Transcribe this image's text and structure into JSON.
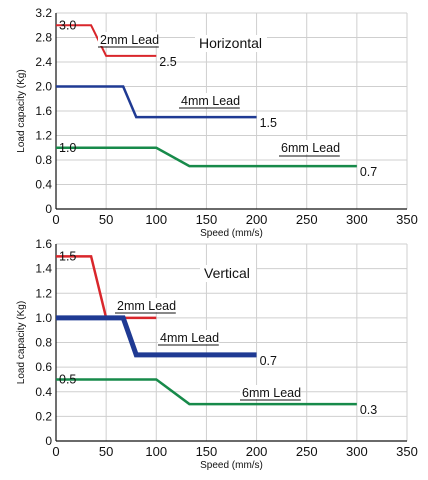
{
  "chart_data": [
    {
      "type": "line",
      "title": "Horizontal",
      "xlabel": "Speed (mm/s)",
      "ylabel": "Load capacity (Kg)",
      "xlim": [
        0,
        350
      ],
      "ylim": [
        0,
        3.2
      ],
      "x_ticks": [
        "0",
        "50",
        "100",
        "150",
        "200",
        "250",
        "300",
        "350"
      ],
      "y_ticks": [
        "0",
        "0.4",
        "0.8",
        "1.2",
        "1.6",
        "2.0",
        "2.4",
        "2.8",
        "3.2"
      ],
      "grid": true,
      "series": [
        {
          "name": "2mm Lead",
          "color": "#d9262b",
          "x": [
            0,
            35,
            50,
            100
          ],
          "y": [
            3.0,
            3.0,
            2.5,
            2.5
          ],
          "start_label": "3.0",
          "end_label": "2.5"
        },
        {
          "name": "4mm Lead",
          "color": "#1f3a93",
          "x": [
            0,
            67,
            80,
            200
          ],
          "y": [
            2.0,
            2.0,
            1.5,
            1.5
          ],
          "start_label": "",
          "end_label": "1.5"
        },
        {
          "name": "6mm Lead",
          "color": "#178a4a",
          "x": [
            0,
            100,
            133,
            300
          ],
          "y": [
            1.0,
            1.0,
            0.7,
            0.7
          ],
          "start_label": "1.0",
          "end_label": "0.7"
        }
      ]
    },
    {
      "type": "line",
      "title": "Vertical",
      "xlabel": "Speed (mm/s)",
      "ylabel": "Load capacity (Kg)",
      "xlim": [
        0,
        350
      ],
      "ylim": [
        0,
        1.6
      ],
      "x_ticks": [
        "0",
        "50",
        "100",
        "150",
        "200",
        "250",
        "300",
        "350"
      ],
      "y_ticks": [
        "0",
        "0.2",
        "0.4",
        "0.6",
        "0.8",
        "1.0",
        "1.2",
        "1.4",
        "1.6"
      ],
      "grid": true,
      "series": [
        {
          "name": "2mm Lead",
          "color": "#d9262b",
          "x": [
            0,
            35,
            50,
            100
          ],
          "y": [
            1.5,
            1.5,
            1.0,
            1.0
          ],
          "start_label": "1.5",
          "end_label": ""
        },
        {
          "name": "4mm Lead",
          "color": "#1f3a93",
          "x": [
            0,
            67,
            80,
            200
          ],
          "y": [
            1.0,
            1.0,
            0.7,
            0.7
          ],
          "start_label": "",
          "end_label": "0.7"
        },
        {
          "name": "6mm Lead",
          "color": "#178a4a",
          "x": [
            0,
            100,
            133,
            300
          ],
          "y": [
            0.5,
            0.5,
            0.3,
            0.3
          ],
          "start_label": "0.5",
          "end_label": "0.3"
        }
      ]
    }
  ]
}
